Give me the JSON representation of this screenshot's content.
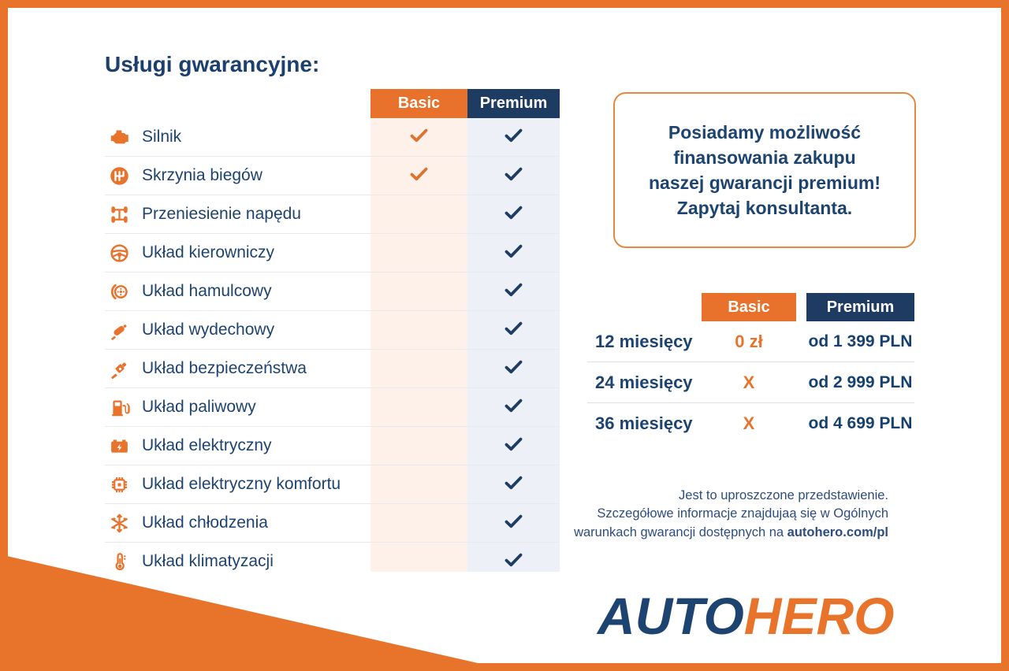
{
  "colors": {
    "orange": "#e8732c",
    "navy_header": "#1e3c62",
    "text_navy": "#1d4370",
    "basic_column_bg": "#fdf1ea",
    "premium_column_bg": "#edf1f7"
  },
  "title": "Usługi gwarancyjne:",
  "comparison_table": {
    "columns": [
      {
        "label": "Basic",
        "color": "#e8722b"
      },
      {
        "label": "Premium",
        "color": "#1e3c62"
      }
    ],
    "rows": [
      {
        "label": "Silnik",
        "icon": "engine-icon",
        "basic": true,
        "premium": true
      },
      {
        "label": "Skrzynia biegów",
        "icon": "gearbox-icon",
        "basic": true,
        "premium": true
      },
      {
        "label": "Przeniesienie napędu",
        "icon": "drivetrain-icon",
        "basic": false,
        "premium": true
      },
      {
        "label": "Układ kierowniczy",
        "icon": "steering-icon",
        "basic": false,
        "premium": true
      },
      {
        "label": "Układ hamulcowy",
        "icon": "brake-icon",
        "basic": false,
        "premium": true
      },
      {
        "label": "Układ wydechowy",
        "icon": "exhaust-icon",
        "basic": false,
        "premium": true
      },
      {
        "label": "Układ bezpieczeństwa",
        "icon": "seatbelt-icon",
        "basic": false,
        "premium": true
      },
      {
        "label": "Układ paliwowy",
        "icon": "fuel-icon",
        "basic": false,
        "premium": true
      },
      {
        "label": "Układ elektryczny",
        "icon": "battery-icon",
        "basic": false,
        "premium": true
      },
      {
        "label": "Układ elektryczny komfortu",
        "icon": "chip-icon",
        "basic": false,
        "premium": true
      },
      {
        "label": "Układ chłodzenia",
        "icon": "snowflake-icon",
        "basic": false,
        "premium": true
      },
      {
        "label": "Układ klimatyzacji",
        "icon": "thermometer-icon",
        "basic": false,
        "premium": true
      }
    ]
  },
  "financing_box": {
    "text": "Posiadamy możliwość\nfinansowania zakupu\nnaszej gwarancji premium!\nZapytaj konsultanta."
  },
  "pricing_table": {
    "columns": [
      "Basic",
      "Premium"
    ],
    "rows": [
      {
        "period": "12 miesięcy",
        "basic": "0 zł",
        "premium": "od 1 399 PLN"
      },
      {
        "period": "24 miesięcy",
        "basic": "X",
        "premium": "od 2 999 PLN"
      },
      {
        "period": "36 miesięcy",
        "basic": "X",
        "premium": "od 4 699 PLN"
      }
    ]
  },
  "disclaimer": {
    "line1": "Jest to uproszczone przedstawienie.",
    "line2": "Szczegółowe informacje znajdujaą się w Ogólnych",
    "line3_prefix": "warunkach gwarancji dostępnych na ",
    "line3_bold": "autohero.com/pl"
  },
  "logo": {
    "part1": "AUTO",
    "part2": "HERO"
  }
}
